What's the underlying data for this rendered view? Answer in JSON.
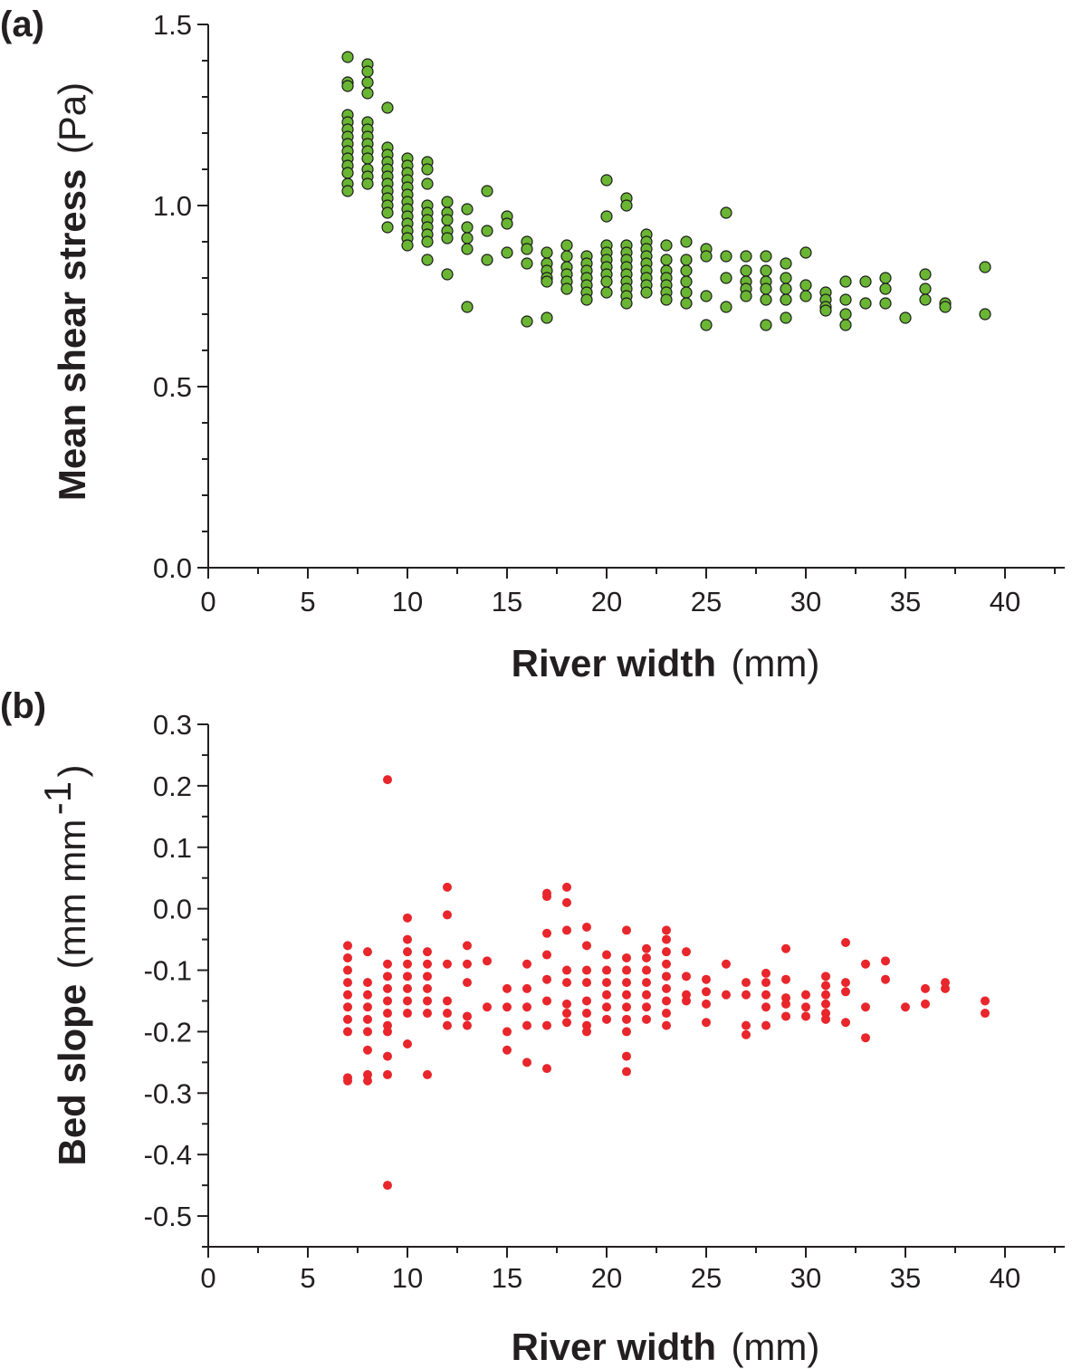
{
  "chart_data": [
    {
      "type": "scatter",
      "panel_label": "(a)",
      "xlabel_bold": "River width",
      "xlabel_unit": "(mm)",
      "ylabel_bold": "Mean shear stress",
      "ylabel_unit": "(Pa)",
      "xlim": [
        0,
        43
      ],
      "ylim": [
        0,
        1.5
      ],
      "x_ticks": [
        "0",
        "5",
        "10",
        "15",
        "20",
        "25",
        "30",
        "35",
        "40"
      ],
      "y_ticks": [
        "0.0",
        "0.5",
        "1.0",
        "1.5"
      ],
      "marker_color": "#6ab533",
      "marker_edge": "#1a1a1a",
      "points": [
        [
          7,
          1.41
        ],
        [
          7,
          1.34
        ],
        [
          7,
          1.33
        ],
        [
          7,
          1.25
        ],
        [
          7,
          1.23
        ],
        [
          7,
          1.21
        ],
        [
          7,
          1.19
        ],
        [
          7,
          1.17
        ],
        [
          7,
          1.15
        ],
        [
          7,
          1.13
        ],
        [
          7,
          1.11
        ],
        [
          7,
          1.09
        ],
        [
          7,
          1.06
        ],
        [
          7,
          1.04
        ],
        [
          8,
          1.39
        ],
        [
          8,
          1.37
        ],
        [
          8,
          1.34
        ],
        [
          8,
          1.31
        ],
        [
          8,
          1.23
        ],
        [
          8,
          1.21
        ],
        [
          8,
          1.19
        ],
        [
          8,
          1.17
        ],
        [
          8,
          1.15
        ],
        [
          8,
          1.13
        ],
        [
          8,
          1.1
        ],
        [
          8,
          1.08
        ],
        [
          8,
          1.06
        ],
        [
          9,
          1.27
        ],
        [
          9,
          1.16
        ],
        [
          9,
          1.14
        ],
        [
          9,
          1.12
        ],
        [
          9,
          1.1
        ],
        [
          9,
          1.08
        ],
        [
          9,
          1.06
        ],
        [
          9,
          1.04
        ],
        [
          9,
          1.02
        ],
        [
          9,
          1.0
        ],
        [
          9,
          0.98
        ],
        [
          9,
          0.94
        ],
        [
          10,
          1.13
        ],
        [
          10,
          1.11
        ],
        [
          10,
          1.09
        ],
        [
          10,
          1.07
        ],
        [
          10,
          1.05
        ],
        [
          10,
          1.03
        ],
        [
          10,
          1.01
        ],
        [
          10,
          0.99
        ],
        [
          10,
          0.97
        ],
        [
          10,
          0.95
        ],
        [
          10,
          0.93
        ],
        [
          10,
          0.91
        ],
        [
          10,
          0.89
        ],
        [
          11,
          1.12
        ],
        [
          11,
          1.1
        ],
        [
          11,
          1.06
        ],
        [
          11,
          1.0
        ],
        [
          11,
          0.98
        ],
        [
          11,
          0.96
        ],
        [
          11,
          0.94
        ],
        [
          11,
          0.92
        ],
        [
          11,
          0.9
        ],
        [
          11,
          0.85
        ],
        [
          12,
          1.01
        ],
        [
          12,
          0.98
        ],
        [
          12,
          0.96
        ],
        [
          12,
          0.93
        ],
        [
          12,
          0.91
        ],
        [
          12,
          0.81
        ],
        [
          13,
          0.99
        ],
        [
          13,
          0.94
        ],
        [
          13,
          0.91
        ],
        [
          13,
          0.88
        ],
        [
          13,
          0.72
        ],
        [
          14,
          1.04
        ],
        [
          14,
          0.93
        ],
        [
          14,
          0.85
        ],
        [
          15,
          0.97
        ],
        [
          15,
          0.95
        ],
        [
          15,
          0.87
        ],
        [
          16,
          0.9
        ],
        [
          16,
          0.88
        ],
        [
          16,
          0.84
        ],
        [
          16,
          0.68
        ],
        [
          17,
          0.87
        ],
        [
          17,
          0.84
        ],
        [
          17,
          0.82
        ],
        [
          17,
          0.8
        ],
        [
          17,
          0.79
        ],
        [
          17,
          0.69
        ],
        [
          18,
          0.89
        ],
        [
          18,
          0.86
        ],
        [
          18,
          0.83
        ],
        [
          18,
          0.81
        ],
        [
          18,
          0.79
        ],
        [
          18,
          0.77
        ],
        [
          19,
          0.86
        ],
        [
          19,
          0.84
        ],
        [
          19,
          0.82
        ],
        [
          19,
          0.8
        ],
        [
          19,
          0.78
        ],
        [
          19,
          0.76
        ],
        [
          19,
          0.74
        ],
        [
          20,
          1.07
        ],
        [
          20,
          0.97
        ],
        [
          20,
          0.89
        ],
        [
          20,
          0.87
        ],
        [
          20,
          0.85
        ],
        [
          20,
          0.83
        ],
        [
          20,
          0.81
        ],
        [
          20,
          0.79
        ],
        [
          20,
          0.76
        ],
        [
          21,
          1.02
        ],
        [
          21,
          1.0
        ],
        [
          21,
          0.89
        ],
        [
          21,
          0.87
        ],
        [
          21,
          0.85
        ],
        [
          21,
          0.83
        ],
        [
          21,
          0.81
        ],
        [
          21,
          0.79
        ],
        [
          21,
          0.77
        ],
        [
          21,
          0.75
        ],
        [
          21,
          0.73
        ],
        [
          22,
          0.92
        ],
        [
          22,
          0.9
        ],
        [
          22,
          0.88
        ],
        [
          22,
          0.86
        ],
        [
          22,
          0.84
        ],
        [
          22,
          0.82
        ],
        [
          22,
          0.8
        ],
        [
          22,
          0.78
        ],
        [
          22,
          0.76
        ],
        [
          23,
          0.89
        ],
        [
          23,
          0.85
        ],
        [
          23,
          0.82
        ],
        [
          23,
          0.8
        ],
        [
          23,
          0.78
        ],
        [
          23,
          0.76
        ],
        [
          23,
          0.74
        ],
        [
          24,
          0.9
        ],
        [
          24,
          0.85
        ],
        [
          24,
          0.82
        ],
        [
          24,
          0.79
        ],
        [
          24,
          0.76
        ],
        [
          24,
          0.73
        ],
        [
          25,
          0.88
        ],
        [
          25,
          0.86
        ],
        [
          25,
          0.75
        ],
        [
          25,
          0.67
        ],
        [
          26,
          0.98
        ],
        [
          26,
          0.86
        ],
        [
          26,
          0.8
        ],
        [
          26,
          0.72
        ],
        [
          27,
          0.86
        ],
        [
          27,
          0.82
        ],
        [
          27,
          0.79
        ],
        [
          27,
          0.77
        ],
        [
          27,
          0.75
        ],
        [
          28,
          0.86
        ],
        [
          28,
          0.82
        ],
        [
          28,
          0.79
        ],
        [
          28,
          0.77
        ],
        [
          28,
          0.74
        ],
        [
          28,
          0.67
        ],
        [
          29,
          0.84
        ],
        [
          29,
          0.8
        ],
        [
          29,
          0.77
        ],
        [
          29,
          0.74
        ],
        [
          29,
          0.69
        ],
        [
          30,
          0.87
        ],
        [
          30,
          0.78
        ],
        [
          30,
          0.75
        ],
        [
          31,
          0.76
        ],
        [
          31,
          0.74
        ],
        [
          31,
          0.72
        ],
        [
          31,
          0.71
        ],
        [
          32,
          0.79
        ],
        [
          32,
          0.74
        ],
        [
          32,
          0.7
        ],
        [
          32,
          0.67
        ],
        [
          33,
          0.79
        ],
        [
          33,
          0.73
        ],
        [
          34,
          0.8
        ],
        [
          34,
          0.77
        ],
        [
          34,
          0.73
        ],
        [
          35,
          0.69
        ],
        [
          36,
          0.81
        ],
        [
          36,
          0.77
        ],
        [
          36,
          0.74
        ],
        [
          37,
          0.73
        ],
        [
          37,
          0.72
        ],
        [
          39,
          0.83
        ],
        [
          39,
          0.7
        ]
      ]
    },
    {
      "type": "scatter",
      "panel_label": "(b)",
      "xlabel_bold": "River width",
      "xlabel_unit": "(mm)",
      "ylabel_bold": "Bed slope",
      "ylabel_unit": "(mm mm",
      "ylabel_sup": "-1",
      "ylabel_close": ")",
      "xlim": [
        0,
        43
      ],
      "ylim": [
        -0.55,
        0.3
      ],
      "x_ticks": [
        "0",
        "5",
        "10",
        "15",
        "20",
        "25",
        "30",
        "35",
        "40"
      ],
      "y_ticks": [
        "0.3",
        "0.2",
        "0.1",
        "0.0",
        "-0.1",
        "-0.2",
        "-0.3",
        "-0.4",
        "-0.5"
      ],
      "marker_color": "#e8262b",
      "points": [
        [
          7,
          -0.06
        ],
        [
          7,
          -0.08
        ],
        [
          7,
          -0.1
        ],
        [
          7,
          -0.12
        ],
        [
          7,
          -0.14
        ],
        [
          7,
          -0.16
        ],
        [
          7,
          -0.18
        ],
        [
          7,
          -0.2
        ],
        [
          7,
          -0.28
        ],
        [
          7,
          -0.275
        ],
        [
          8,
          -0.07
        ],
        [
          8,
          -0.12
        ],
        [
          8,
          -0.14
        ],
        [
          8,
          -0.16
        ],
        [
          8,
          -0.18
        ],
        [
          8,
          -0.2
        ],
        [
          8,
          -0.23
        ],
        [
          8,
          -0.27
        ],
        [
          8,
          -0.28
        ],
        [
          9,
          0.21
        ],
        [
          9,
          -0.09
        ],
        [
          9,
          -0.11
        ],
        [
          9,
          -0.13
        ],
        [
          9,
          -0.15
        ],
        [
          9,
          -0.17
        ],
        [
          9,
          -0.19
        ],
        [
          9,
          -0.2
        ],
        [
          9,
          -0.24
        ],
        [
          9,
          -0.27
        ],
        [
          9,
          -0.45
        ],
        [
          10,
          -0.015
        ],
        [
          10,
          -0.05
        ],
        [
          10,
          -0.07
        ],
        [
          10,
          -0.09
        ],
        [
          10,
          -0.11
        ],
        [
          10,
          -0.13
        ],
        [
          10,
          -0.15
        ],
        [
          10,
          -0.17
        ],
        [
          10,
          -0.22
        ],
        [
          11,
          -0.07
        ],
        [
          11,
          -0.09
        ],
        [
          11,
          -0.11
        ],
        [
          11,
          -0.13
        ],
        [
          11,
          -0.15
        ],
        [
          11,
          -0.17
        ],
        [
          11,
          -0.27
        ],
        [
          12,
          0.035
        ],
        [
          12,
          -0.01
        ],
        [
          12,
          -0.09
        ],
        [
          12,
          -0.15
        ],
        [
          12,
          -0.17
        ],
        [
          12,
          -0.19
        ],
        [
          13,
          -0.06
        ],
        [
          13,
          -0.09
        ],
        [
          13,
          -0.12
        ],
        [
          13,
          -0.175
        ],
        [
          13,
          -0.19
        ],
        [
          14,
          -0.085
        ],
        [
          14,
          -0.16
        ],
        [
          15,
          -0.13
        ],
        [
          15,
          -0.16
        ],
        [
          15,
          -0.2
        ],
        [
          15,
          -0.23
        ],
        [
          16,
          -0.09
        ],
        [
          16,
          -0.13
        ],
        [
          16,
          -0.16
        ],
        [
          16,
          -0.19
        ],
        [
          16,
          -0.25
        ],
        [
          17,
          0.025
        ],
        [
          17,
          0.02
        ],
        [
          17,
          -0.04
        ],
        [
          17,
          -0.075
        ],
        [
          17,
          -0.115
        ],
        [
          17,
          -0.15
        ],
        [
          17,
          -0.19
        ],
        [
          17,
          -0.26
        ],
        [
          18,
          0.035
        ],
        [
          18,
          0.01
        ],
        [
          18,
          -0.035
        ],
        [
          18,
          -0.1
        ],
        [
          18,
          -0.12
        ],
        [
          18,
          -0.155
        ],
        [
          18,
          -0.17
        ],
        [
          18,
          -0.185
        ],
        [
          19,
          -0.03
        ],
        [
          19,
          -0.06
        ],
        [
          19,
          -0.1
        ],
        [
          19,
          -0.12
        ],
        [
          19,
          -0.15
        ],
        [
          19,
          -0.17
        ],
        [
          19,
          -0.19
        ],
        [
          19,
          -0.2
        ],
        [
          20,
          -0.075
        ],
        [
          20,
          -0.1
        ],
        [
          20,
          -0.12
        ],
        [
          20,
          -0.14
        ],
        [
          20,
          -0.16
        ],
        [
          20,
          -0.18
        ],
        [
          21,
          -0.035
        ],
        [
          21,
          -0.08
        ],
        [
          21,
          -0.1
        ],
        [
          21,
          -0.12
        ],
        [
          21,
          -0.14
        ],
        [
          21,
          -0.16
        ],
        [
          21,
          -0.18
        ],
        [
          21,
          -0.2
        ],
        [
          21,
          -0.24
        ],
        [
          21,
          -0.265
        ],
        [
          22,
          -0.065
        ],
        [
          22,
          -0.08
        ],
        [
          22,
          -0.1
        ],
        [
          22,
          -0.12
        ],
        [
          22,
          -0.14
        ],
        [
          22,
          -0.16
        ],
        [
          22,
          -0.18
        ],
        [
          23,
          -0.035
        ],
        [
          23,
          -0.05
        ],
        [
          23,
          -0.07
        ],
        [
          23,
          -0.09
        ],
        [
          23,
          -0.11
        ],
        [
          23,
          -0.13
        ],
        [
          23,
          -0.15
        ],
        [
          23,
          -0.17
        ],
        [
          23,
          -0.19
        ],
        [
          24,
          -0.07
        ],
        [
          24,
          -0.11
        ],
        [
          24,
          -0.14
        ],
        [
          24,
          -0.15
        ],
        [
          25,
          -0.115
        ],
        [
          25,
          -0.135
        ],
        [
          25,
          -0.155
        ],
        [
          25,
          -0.185
        ],
        [
          26,
          -0.09
        ],
        [
          26,
          -0.14
        ],
        [
          27,
          -0.12
        ],
        [
          27,
          -0.14
        ],
        [
          27,
          -0.19
        ],
        [
          27,
          -0.205
        ],
        [
          28,
          -0.105
        ],
        [
          28,
          -0.12
        ],
        [
          28,
          -0.14
        ],
        [
          28,
          -0.16
        ],
        [
          28,
          -0.19
        ],
        [
          29,
          -0.065
        ],
        [
          29,
          -0.115
        ],
        [
          29,
          -0.145
        ],
        [
          29,
          -0.155
        ],
        [
          29,
          -0.175
        ],
        [
          30,
          -0.14
        ],
        [
          30,
          -0.16
        ],
        [
          30,
          -0.175
        ],
        [
          31,
          -0.11
        ],
        [
          31,
          -0.125
        ],
        [
          31,
          -0.14
        ],
        [
          31,
          -0.155
        ],
        [
          31,
          -0.17
        ],
        [
          31,
          -0.18
        ],
        [
          32,
          -0.055
        ],
        [
          32,
          -0.12
        ],
        [
          32,
          -0.135
        ],
        [
          32,
          -0.185
        ],
        [
          33,
          -0.09
        ],
        [
          33,
          -0.16
        ],
        [
          33,
          -0.21
        ],
        [
          34,
          -0.085
        ],
        [
          34,
          -0.115
        ],
        [
          35,
          -0.16
        ],
        [
          36,
          -0.13
        ],
        [
          36,
          -0.155
        ],
        [
          37,
          -0.12
        ],
        [
          37,
          -0.13
        ],
        [
          39,
          -0.15
        ],
        [
          39,
          -0.17
        ]
      ]
    }
  ]
}
